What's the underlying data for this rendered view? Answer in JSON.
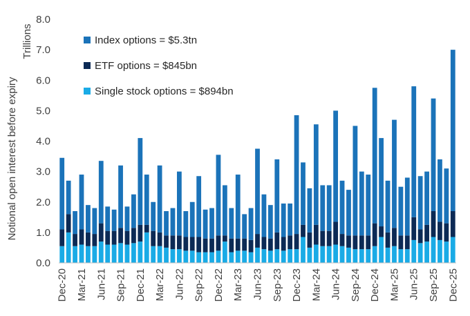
{
  "chart_data": {
    "type": "bar",
    "stacked": true,
    "title": "",
    "xlabel": "",
    "ylabel": "Notional open interest before expiry",
    "unit_label": "Trillions",
    "ylim": [
      0,
      8
    ],
    "yticks": [
      "0.0",
      "1.0",
      "2.0",
      "3.0",
      "4.0",
      "5.0",
      "6.0",
      "7.0",
      "8.0"
    ],
    "grid": false,
    "legend_position": "top-left",
    "x_tick_labels": [
      "Dec-20",
      "Mar-21",
      "Jun-21",
      "Sep-21",
      "Dec-21",
      "Mar-22",
      "Jun-22",
      "Sep-22",
      "Dec-22",
      "Mar-23",
      "Jun-23",
      "Sep-23",
      "Dec-23",
      "Mar-24",
      "Jun-24",
      "Sep-24",
      "Dec-24",
      "Mar-25",
      "Jun-25",
      "Sep-25",
      "Dec-25"
    ],
    "categories": [
      "Dec-20",
      "Jan-21",
      "Feb-21",
      "Mar-21",
      "Apr-21",
      "May-21",
      "Jun-21",
      "Jul-21",
      "Aug-21",
      "Sep-21",
      "Oct-21",
      "Nov-21",
      "Dec-21",
      "Jan-22",
      "Feb-22",
      "Mar-22",
      "Apr-22",
      "May-22",
      "Jun-22",
      "Jul-22",
      "Aug-22",
      "Sep-22",
      "Oct-22",
      "Nov-22",
      "Dec-22",
      "Jan-23",
      "Feb-23",
      "Mar-23",
      "Apr-23",
      "May-23",
      "Jun-23",
      "Jul-23",
      "Aug-23",
      "Sep-23",
      "Oct-23",
      "Nov-23",
      "Dec-23",
      "Jan-24",
      "Feb-24",
      "Mar-24",
      "Apr-24",
      "May-24",
      "Jun-24",
      "Jul-24",
      "Aug-24",
      "Sep-24",
      "Oct-24",
      "Nov-24",
      "Dec-24",
      "Jan-25",
      "Feb-25",
      "Mar-25",
      "Apr-25",
      "May-25",
      "Jun-25",
      "Jul-25",
      "Aug-25",
      "Sep-25",
      "Oct-25",
      "Nov-25",
      "Dec-25"
    ],
    "series": [
      {
        "name": "Single stock options = $894bn",
        "color": "#1aabe6",
        "values": [
          0.55,
          1.0,
          0.55,
          0.6,
          0.55,
          0.55,
          0.7,
          0.6,
          0.6,
          0.65,
          0.6,
          0.65,
          0.7,
          1.0,
          0.55,
          0.55,
          0.5,
          0.45,
          0.45,
          0.4,
          0.4,
          0.35,
          0.35,
          0.35,
          0.4,
          0.7,
          0.35,
          0.4,
          0.4,
          0.35,
          0.5,
          0.45,
          0.4,
          0.45,
          0.4,
          0.45,
          0.45,
          0.85,
          0.5,
          0.6,
          0.55,
          0.55,
          0.6,
          0.55,
          0.5,
          0.45,
          0.45,
          0.45,
          0.55,
          0.85,
          0.5,
          0.55,
          0.45,
          0.45,
          0.75,
          0.65,
          0.7,
          0.85,
          0.75,
          0.7,
          0.85
        ]
      },
      {
        "name": "ETF options = $845bn",
        "color": "#0c2a55",
        "values": [
          0.55,
          0.6,
          0.4,
          0.5,
          0.45,
          0.4,
          0.6,
          0.45,
          0.45,
          0.5,
          0.45,
          0.5,
          0.55,
          0.25,
          0.5,
          0.45,
          0.4,
          0.45,
          0.45,
          0.45,
          0.45,
          0.5,
          0.45,
          0.45,
          0.5,
          0.2,
          0.45,
          0.4,
          0.4,
          0.4,
          0.45,
          0.4,
          0.4,
          0.55,
          0.45,
          0.45,
          0.5,
          0.4,
          0.5,
          0.65,
          0.5,
          0.5,
          0.75,
          0.4,
          0.4,
          0.45,
          0.45,
          0.45,
          0.75,
          0.35,
          0.5,
          0.6,
          0.45,
          0.45,
          0.75,
          0.45,
          0.55,
          0.85,
          0.6,
          0.6,
          0.85
        ]
      },
      {
        "name": "Index options = $5.3tn",
        "color": "#1b73b9",
        "values": [
          2.35,
          1.1,
          0.75,
          1.8,
          0.9,
          0.85,
          2.05,
          0.8,
          0.7,
          2.05,
          0.8,
          1.1,
          2.85,
          1.65,
          0.95,
          2.2,
          0.8,
          0.9,
          2.1,
          0.85,
          1.15,
          2.0,
          0.95,
          1.0,
          2.65,
          1.65,
          1.0,
          2.1,
          0.8,
          1.05,
          2.8,
          1.4,
          1.1,
          2.4,
          1.1,
          1.05,
          3.9,
          2.05,
          1.45,
          3.3,
          1.5,
          1.5,
          3.65,
          1.75,
          1.5,
          3.6,
          2.1,
          2.0,
          4.45,
          2.9,
          1.7,
          3.55,
          1.6,
          1.9,
          4.3,
          1.75,
          1.75,
          3.7,
          2.05,
          1.8,
          5.3
        ]
      }
    ],
    "legend_order": [
      2,
      1,
      0
    ]
  }
}
